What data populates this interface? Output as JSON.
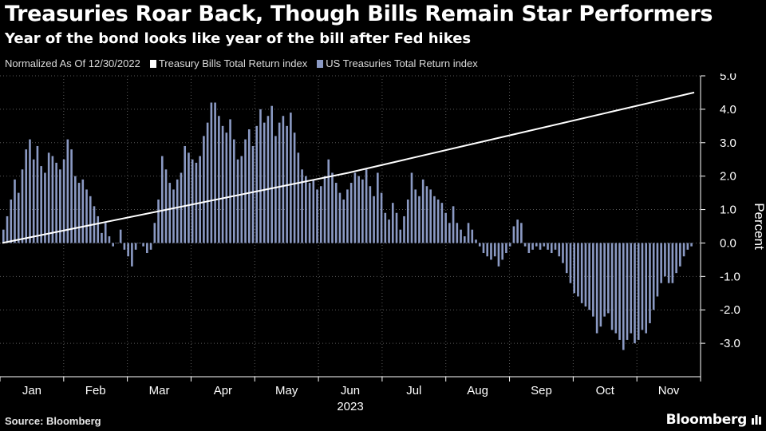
{
  "title": "Treasuries Roar Back, Though Bills Remain Star Performers",
  "subtitle": "Year of the bond looks like year of the bill after Fed hikes",
  "legend": {
    "note": "Normalized As Of 12/30/2022",
    "series_1": "Treasury Bills Total Return index",
    "series_2": "US Treasuries Total Return index"
  },
  "source": "Source: Bloomberg",
  "brand": "Bloomberg",
  "colors": {
    "background": "#000000",
    "line": "#ffffff",
    "bars": "#8b9ac4",
    "grid": "#5a5a5a"
  },
  "chart_data": {
    "type": "bar",
    "x_axis": {
      "months": [
        "Jan",
        "Feb",
        "Mar",
        "Apr",
        "May",
        "Jun",
        "Jul",
        "Aug",
        "Sep",
        "Oct",
        "Nov"
      ],
      "year_label": "2023"
    },
    "y_axis": {
      "label": "Percent",
      "ylim": [
        -4,
        5
      ],
      "ticks": [
        5.0,
        4.0,
        3.0,
        2.0,
        1.0,
        0.0,
        -1.0,
        -2.0,
        -3.0
      ],
      "position": "right"
    },
    "grid": true,
    "legend_placement": "top-left",
    "series": [
      {
        "name": "US Treasuries Total Return index",
        "type": "bar",
        "values": [
          0.4,
          0.8,
          1.3,
          1.9,
          1.5,
          2.2,
          2.8,
          3.1,
          2.5,
          2.9,
          2.3,
          2.1,
          2.7,
          2.6,
          2.4,
          2.2,
          2.5,
          3.1,
          2.8,
          2.0,
          1.8,
          1.9,
          1.6,
          1.4,
          1.1,
          0.8,
          0.3,
          0.6,
          0.2,
          -0.1,
          0.0,
          0.4,
          -0.2,
          -0.4,
          -0.7,
          -0.2,
          0.0,
          -0.1,
          -0.3,
          -0.2,
          0.6,
          1.3,
          2.6,
          2.2,
          1.8,
          1.6,
          1.9,
          2.1,
          2.9,
          2.7,
          2.5,
          2.4,
          2.6,
          3.2,
          3.6,
          4.2,
          4.2,
          3.8,
          3.5,
          3.3,
          3.7,
          3.1,
          2.5,
          2.6,
          3.1,
          3.4,
          2.9,
          3.5,
          4.0,
          3.6,
          3.8,
          4.1,
          3.2,
          3.6,
          3.8,
          3.5,
          3.9,
          3.3,
          2.7,
          2.2,
          2.0,
          1.8,
          1.9,
          1.6,
          1.7,
          2.0,
          2.5,
          2.1,
          1.8,
          1.5,
          1.3,
          1.6,
          1.8,
          2.1,
          2.0,
          1.9,
          2.2,
          1.7,
          1.4,
          2.1,
          1.5,
          0.9,
          0.7,
          1.2,
          0.9,
          0.4,
          0.8,
          1.3,
          2.1,
          1.6,
          1.4,
          1.9,
          1.7,
          1.6,
          1.4,
          1.3,
          1.2,
          0.9,
          0.6,
          1.1,
          0.6,
          0.4,
          0.2,
          0.6,
          0.4,
          0.1,
          -0.1,
          -0.3,
          -0.4,
          -0.5,
          -0.4,
          -0.7,
          -0.5,
          -0.3,
          -0.1,
          0.5,
          0.7,
          0.6,
          -0.1,
          -0.3,
          -0.2,
          -0.1,
          -0.2,
          -0.1,
          -0.2,
          -0.3,
          -0.2,
          -0.4,
          -0.6,
          -0.9,
          -1.2,
          -1.5,
          -1.6,
          -1.8,
          -1.9,
          -2.0,
          -2.2,
          -2.7,
          -2.5,
          -2.2,
          -2.1,
          -2.6,
          -2.7,
          -2.9,
          -3.2,
          -2.9,
          -2.7,
          -3.0,
          -2.9,
          -2.6,
          -2.7,
          -2.4,
          -2.0,
          -1.6,
          -1.2,
          -1.0,
          -1.2,
          -1.2,
          -0.9,
          -0.7,
          -0.4,
          -0.2,
          -0.1
        ]
      },
      {
        "name": "Treasury Bills Total Return index",
        "type": "line",
        "x_fraction": [
          0.0,
          0.5,
          1.0
        ],
        "values": [
          0.0,
          2.1,
          4.5
        ]
      }
    ]
  }
}
